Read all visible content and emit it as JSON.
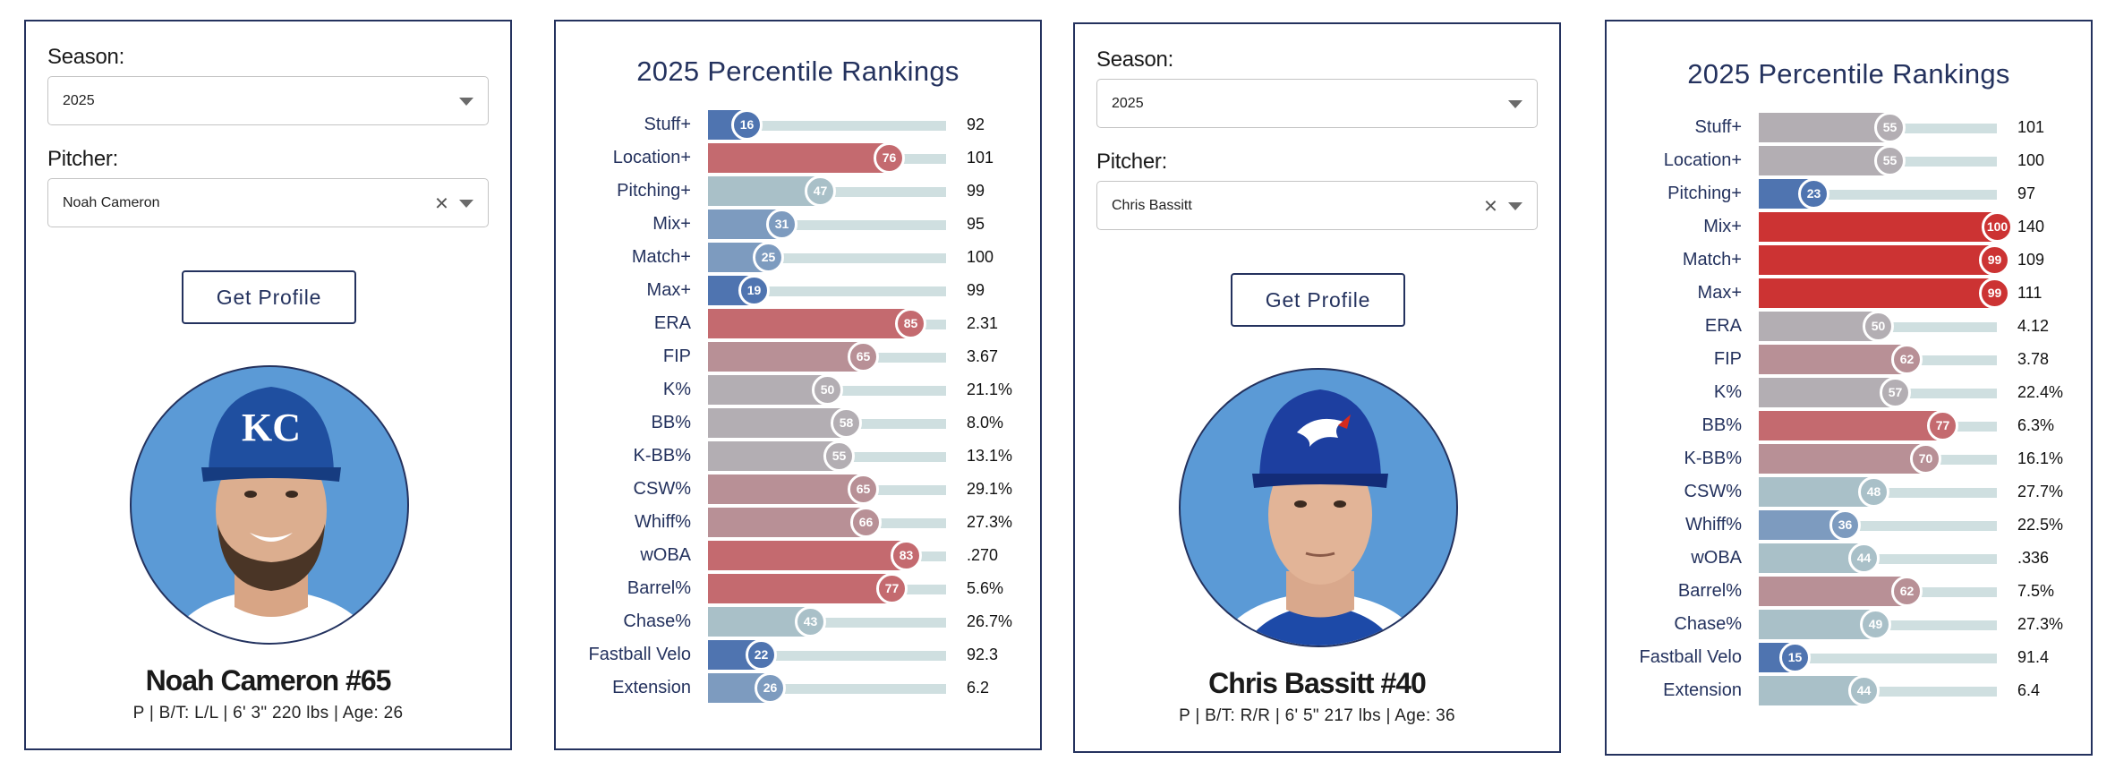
{
  "players": [
    {
      "season_label": "Season:",
      "season_value": "2025",
      "pitcher_label": "Pitcher:",
      "pitcher_value": "Noah Cameron",
      "clear_glyph": "×",
      "button_label": "Get Profile",
      "name": "Noah Cameron #65",
      "bio": "P | B/T: L/L | 6' 3\" 220 lbs | Age: 26",
      "cap_color": "#1f4fa0",
      "cap_logo": "KC",
      "chart_title": "2025 Percentile Rankings"
    },
    {
      "season_label": "Season:",
      "season_value": "2025",
      "pitcher_label": "Pitcher:",
      "pitcher_value": "Chris Bassitt",
      "clear_glyph": "×",
      "button_label": "Get Profile",
      "name": "Chris Bassitt #40",
      "bio": "P | B/T: R/R | 6' 5\" 217 lbs | Age: 36",
      "cap_color": "#1d3fa0",
      "cap_logo": "",
      "chart_title": "2025 Percentile Rankings"
    }
  ],
  "colors": {
    "panel_border": "#24325e",
    "title": "#24325e",
    "track": "#cfdfe0",
    "scale": {
      "very_low": "#4f74b0",
      "low": "#7d9bbf",
      "mid_low": "#a9c0c8",
      "mid": "#b3aeb3",
      "mid_high": "#b89096",
      "high": "#c46a6f",
      "very_high": "#cc3333"
    }
  },
  "chart_data": [
    {
      "type": "bar",
      "title": "2025 Percentile Rankings",
      "xlim": [
        0,
        100
      ],
      "categories": [
        "Stuff+",
        "Location+",
        "Pitching+",
        "Mix+",
        "Match+",
        "Max+",
        "ERA",
        "FIP",
        "K%",
        "BB%",
        "K-BB%",
        "CSW%",
        "Whiff%",
        "wOBA",
        "Barrel%",
        "Chase%",
        "Fastball Velo",
        "Extension"
      ],
      "percentiles": [
        16,
        76,
        47,
        31,
        25,
        19,
        85,
        65,
        50,
        58,
        55,
        65,
        66,
        83,
        77,
        43,
        22,
        26
      ],
      "values": [
        "92",
        "101",
        "99",
        "95",
        "100",
        "99",
        "2.31",
        "3.67",
        "21.1%",
        "8.0%",
        "13.1%",
        "29.1%",
        "27.3%",
        ".270",
        "5.6%",
        "26.7%",
        "92.3",
        "6.2"
      ]
    },
    {
      "type": "bar",
      "title": "2025 Percentile Rankings",
      "xlim": [
        0,
        100
      ],
      "categories": [
        "Stuff+",
        "Location+",
        "Pitching+",
        "Mix+",
        "Match+",
        "Max+",
        "ERA",
        "FIP",
        "K%",
        "BB%",
        "K-BB%",
        "CSW%",
        "Whiff%",
        "wOBA",
        "Barrel%",
        "Chase%",
        "Fastball Velo",
        "Extension"
      ],
      "percentiles": [
        55,
        55,
        23,
        100,
        99,
        99,
        50,
        62,
        57,
        77,
        70,
        48,
        36,
        44,
        62,
        49,
        15,
        44
      ],
      "values": [
        "101",
        "100",
        "97",
        "140",
        "109",
        "111",
        "4.12",
        "3.78",
        "22.4%",
        "6.3%",
        "16.1%",
        "27.7%",
        "22.5%",
        ".336",
        "7.5%",
        "27.3%",
        "91.4",
        "6.4"
      ]
    }
  ]
}
